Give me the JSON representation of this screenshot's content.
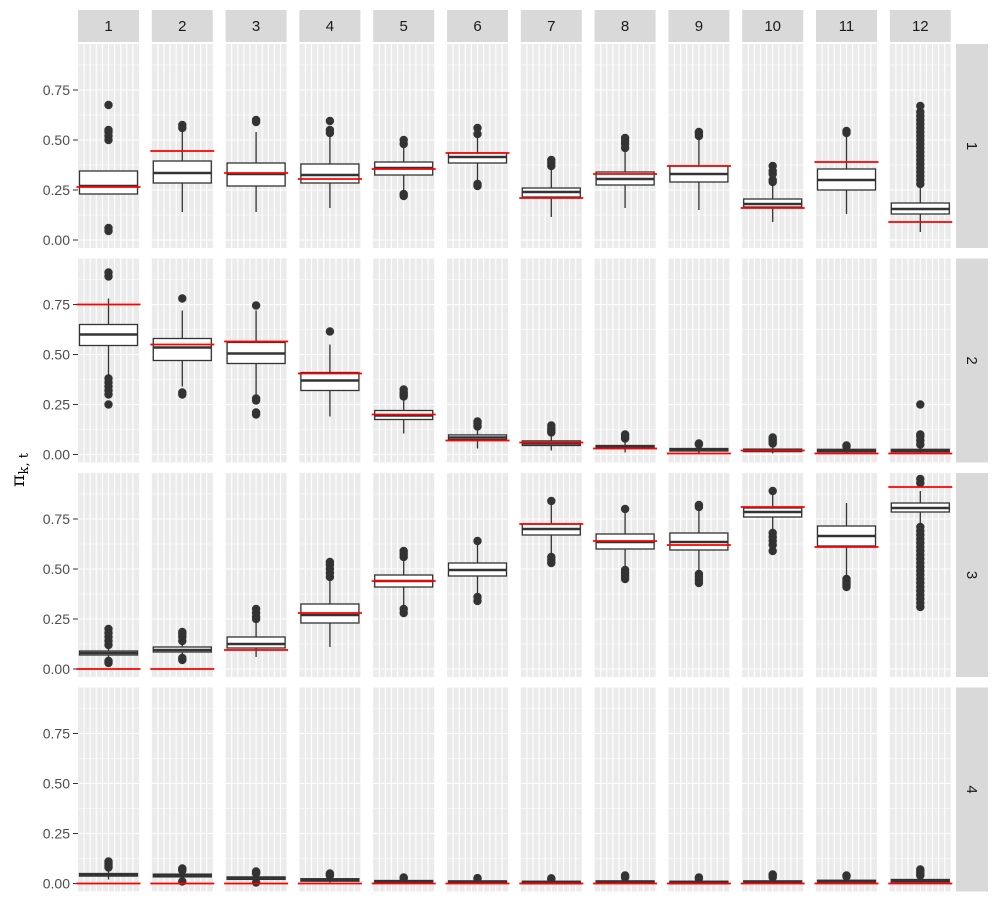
{
  "chart_data": {
    "type": "boxplot",
    "title": "",
    "xlabel": "",
    "ylabel": "π_k, t",
    "ylabel_main": "π",
    "ylabel_sub": "k, t",
    "ylim": [
      -0.04,
      0.98
    ],
    "y_ticks": [
      0,
      0.25,
      0.5,
      0.75
    ],
    "y_tick_labels": [
      "0.00",
      "0.25",
      "0.50",
      "0.75"
    ],
    "grid": true,
    "legend": "none",
    "colors": {
      "panel_bg": "#ebebeb",
      "grid": "#ffffff",
      "strip_bg": "#d9d9d9",
      "box": "#333333",
      "box_fill": "#ffffff",
      "reference_line": "#ff0000"
    },
    "column_facets": [
      "1",
      "2",
      "3",
      "4",
      "5",
      "6",
      "7",
      "8",
      "9",
      "10",
      "11",
      "12"
    ],
    "row_facets": [
      "1",
      "2",
      "3",
      "4"
    ],
    "panels": [
      [
        {
          "q1": 0.23,
          "median": 0.27,
          "q3": 0.345,
          "lo": 0.23,
          "hi": 0.345,
          "ref": 0.265,
          "out": [
            0.045,
            0.06,
            0.5,
            0.52,
            0.54,
            0.55,
            0.675
          ]
        },
        {
          "q1": 0.285,
          "median": 0.335,
          "q3": 0.395,
          "lo": 0.14,
          "hi": 0.55,
          "ref": 0.445,
          "out": [
            0.56,
            0.575
          ]
        },
        {
          "q1": 0.27,
          "median": 0.33,
          "q3": 0.385,
          "lo": 0.14,
          "hi": 0.54,
          "ref": 0.335,
          "out": [
            0.59,
            0.6
          ]
        },
        {
          "q1": 0.285,
          "median": 0.325,
          "q3": 0.38,
          "lo": 0.16,
          "hi": 0.52,
          "ref": 0.305,
          "out": [
            0.535,
            0.55,
            0.595
          ]
        },
        {
          "q1": 0.325,
          "median": 0.36,
          "q3": 0.39,
          "lo": 0.24,
          "hi": 0.47,
          "ref": 0.355,
          "out": [
            0.22,
            0.23,
            0.48,
            0.5
          ]
        },
        {
          "q1": 0.385,
          "median": 0.415,
          "q3": 0.435,
          "lo": 0.29,
          "hi": 0.52,
          "ref": 0.435,
          "out": [
            0.27,
            0.28,
            0.53,
            0.56
          ]
        },
        {
          "q1": 0.215,
          "median": 0.24,
          "q3": 0.26,
          "lo": 0.115,
          "hi": 0.36,
          "ref": 0.21,
          "out": [
            0.37,
            0.385,
            0.4
          ]
        },
        {
          "q1": 0.275,
          "median": 0.305,
          "q3": 0.34,
          "lo": 0.16,
          "hi": 0.45,
          "ref": 0.33,
          "out": [
            0.46,
            0.48,
            0.495,
            0.51
          ]
        },
        {
          "q1": 0.29,
          "median": 0.33,
          "q3": 0.37,
          "lo": 0.15,
          "hi": 0.5,
          "ref": 0.37,
          "out": [
            0.52,
            0.535,
            0.54
          ]
        },
        {
          "q1": 0.165,
          "median": 0.18,
          "q3": 0.205,
          "lo": 0.09,
          "hi": 0.28,
          "ref": 0.16,
          "out": [
            0.29,
            0.3,
            0.33,
            0.345,
            0.37
          ]
        },
        {
          "q1": 0.25,
          "median": 0.3,
          "q3": 0.355,
          "lo": 0.13,
          "hi": 0.52,
          "ref": 0.39,
          "out": [
            0.535,
            0.545
          ]
        },
        {
          "q1": 0.13,
          "median": 0.155,
          "q3": 0.185,
          "lo": 0.04,
          "hi": 0.27,
          "ref": 0.09,
          "out": [
            0.28,
            0.3,
            0.32,
            0.34,
            0.36,
            0.38,
            0.4,
            0.42,
            0.44,
            0.46,
            0.48,
            0.5,
            0.52,
            0.54,
            0.56,
            0.58,
            0.6,
            0.62,
            0.64,
            0.67
          ]
        }
      ],
      [
        {
          "q1": 0.545,
          "median": 0.6,
          "q3": 0.65,
          "lo": 0.4,
          "hi": 0.78,
          "ref": 0.75,
          "out": [
            0.25,
            0.3,
            0.32,
            0.34,
            0.36,
            0.38,
            0.89,
            0.91
          ]
        },
        {
          "q1": 0.47,
          "median": 0.535,
          "q3": 0.58,
          "lo": 0.34,
          "hi": 0.72,
          "ref": 0.55,
          "out": [
            0.3,
            0.31,
            0.78
          ]
        },
        {
          "q1": 0.455,
          "median": 0.505,
          "q3": 0.56,
          "lo": 0.3,
          "hi": 0.72,
          "ref": 0.565,
          "out": [
            0.2,
            0.21,
            0.27,
            0.28,
            0.745
          ]
        },
        {
          "q1": 0.32,
          "median": 0.37,
          "q3": 0.41,
          "lo": 0.19,
          "hi": 0.55,
          "ref": 0.405,
          "out": [
            0.615
          ]
        },
        {
          "q1": 0.175,
          "median": 0.195,
          "q3": 0.22,
          "lo": 0.105,
          "hi": 0.28,
          "ref": 0.2,
          "out": [
            0.29,
            0.3,
            0.31,
            0.325
          ]
        },
        {
          "q1": 0.075,
          "median": 0.085,
          "q3": 0.098,
          "lo": 0.03,
          "hi": 0.13,
          "ref": 0.07,
          "out": [
            0.14,
            0.155,
            0.165
          ]
        },
        {
          "q1": 0.045,
          "median": 0.055,
          "q3": 0.068,
          "lo": 0.02,
          "hi": 0.1,
          "ref": 0.06,
          "out": [
            0.11,
            0.12,
            0.13,
            0.145
          ]
        },
        {
          "q1": 0.03,
          "median": 0.037,
          "q3": 0.045,
          "lo": 0.01,
          "hi": 0.07,
          "ref": 0.03,
          "out": [
            0.08,
            0.09,
            0.1
          ]
        },
        {
          "q1": 0.018,
          "median": 0.024,
          "q3": 0.03,
          "lo": 0.005,
          "hi": 0.045,
          "ref": 0.005,
          "out": [
            0.05,
            0.055
          ]
        },
        {
          "q1": 0.015,
          "median": 0.02,
          "q3": 0.027,
          "lo": 0.005,
          "hi": 0.045,
          "ref": 0.02,
          "out": [
            0.055,
            0.065,
            0.075,
            0.085
          ]
        },
        {
          "q1": 0.015,
          "median": 0.02,
          "q3": 0.026,
          "lo": 0.005,
          "hi": 0.035,
          "ref": 0.005,
          "out": [
            0.04,
            0.045
          ]
        },
        {
          "q1": 0.015,
          "median": 0.02,
          "q3": 0.026,
          "lo": 0.005,
          "hi": 0.04,
          "ref": 0.005,
          "out": [
            0.05,
            0.07,
            0.09,
            0.1,
            0.25
          ]
        }
      ],
      [
        {
          "q1": 0.07,
          "median": 0.08,
          "q3": 0.09,
          "lo": 0.05,
          "hi": 0.11,
          "ref": 0.0,
          "out": [
            0.03,
            0.04,
            0.12,
            0.14,
            0.16,
            0.18,
            0.2
          ]
        },
        {
          "q1": 0.085,
          "median": 0.095,
          "q3": 0.11,
          "lo": 0.06,
          "hi": 0.13,
          "ref": 0.0,
          "out": [
            0.045,
            0.055,
            0.14,
            0.16,
            0.175,
            0.185
          ]
        },
        {
          "q1": 0.105,
          "median": 0.125,
          "q3": 0.16,
          "lo": 0.06,
          "hi": 0.23,
          "ref": 0.095,
          "out": [
            0.25,
            0.26,
            0.28,
            0.3
          ]
        },
        {
          "q1": 0.23,
          "median": 0.27,
          "q3": 0.325,
          "lo": 0.11,
          "hi": 0.45,
          "ref": 0.28,
          "out": [
            0.46,
            0.48,
            0.5,
            0.52,
            0.535
          ]
        },
        {
          "q1": 0.41,
          "median": 0.44,
          "q3": 0.47,
          "lo": 0.32,
          "hi": 0.55,
          "ref": 0.44,
          "out": [
            0.28,
            0.3,
            0.56,
            0.575,
            0.59
          ]
        },
        {
          "q1": 0.465,
          "median": 0.495,
          "q3": 0.53,
          "lo": 0.37,
          "hi": 0.62,
          "ref": 0.0,
          "ref_shown": false,
          "out": [
            0.34,
            0.36,
            0.64
          ]
        },
        {
          "q1": 0.67,
          "median": 0.7,
          "q3": 0.725,
          "lo": 0.57,
          "hi": 0.83,
          "ref": 0.725,
          "out": [
            0.53,
            0.545,
            0.56,
            0.84
          ]
        },
        {
          "q1": 0.6,
          "median": 0.635,
          "q3": 0.675,
          "lo": 0.5,
          "hi": 0.78,
          "ref": 0.64,
          "out": [
            0.45,
            0.465,
            0.48,
            0.495,
            0.8
          ]
        },
        {
          "q1": 0.595,
          "median": 0.635,
          "q3": 0.68,
          "lo": 0.49,
          "hi": 0.8,
          "ref": 0.62,
          "out": [
            0.43,
            0.445,
            0.46,
            0.475,
            0.81,
            0.82
          ]
        },
        {
          "q1": 0.76,
          "median": 0.785,
          "q3": 0.805,
          "lo": 0.69,
          "hi": 0.87,
          "ref": 0.81,
          "out": [
            0.59,
            0.62,
            0.64,
            0.66,
            0.68,
            0.89
          ]
        },
        {
          "q1": 0.615,
          "median": 0.665,
          "q3": 0.715,
          "lo": 0.46,
          "hi": 0.83,
          "ref": 0.61,
          "out": [
            0.41,
            0.42,
            0.43,
            0.44,
            0.45
          ]
        },
        {
          "q1": 0.785,
          "median": 0.805,
          "q3": 0.83,
          "lo": 0.72,
          "hi": 0.89,
          "ref": 0.91,
          "out": [
            0.31,
            0.33,
            0.35,
            0.37,
            0.39,
            0.41,
            0.43,
            0.45,
            0.47,
            0.49,
            0.51,
            0.53,
            0.55,
            0.57,
            0.59,
            0.61,
            0.63,
            0.65,
            0.67,
            0.69,
            0.71,
            0.93,
            0.95
          ]
        }
      ],
      [
        {
          "q1": 0.037,
          "median": 0.043,
          "q3": 0.05,
          "lo": 0.02,
          "hi": 0.07,
          "ref": 0.0,
          "out": [
            0.08,
            0.09,
            0.1,
            0.11
          ]
        },
        {
          "q1": 0.033,
          "median": 0.04,
          "q3": 0.047,
          "lo": 0.02,
          "hi": 0.06,
          "ref": 0.0,
          "out": [
            0.01,
            0.065,
            0.07,
            0.075
          ]
        },
        {
          "q1": 0.022,
          "median": 0.027,
          "q3": 0.033,
          "lo": 0.01,
          "hi": 0.045,
          "ref": 0.0,
          "out": [
            0.005,
            0.05,
            0.055,
            0.06
          ]
        },
        {
          "q1": 0.014,
          "median": 0.018,
          "q3": 0.024,
          "lo": 0.005,
          "hi": 0.035,
          "ref": 0.0,
          "out": [
            0.04,
            0.045,
            0.05
          ]
        },
        {
          "q1": 0.008,
          "median": 0.011,
          "q3": 0.015,
          "lo": 0.002,
          "hi": 0.022,
          "ref": 0.0,
          "out": [
            0.025,
            0.03
          ]
        },
        {
          "q1": 0.006,
          "median": 0.009,
          "q3": 0.013,
          "lo": 0.001,
          "hi": 0.02,
          "ref": 0.0,
          "out": [
            0.023,
            0.027
          ]
        },
        {
          "q1": 0.005,
          "median": 0.008,
          "q3": 0.011,
          "lo": 0.001,
          "hi": 0.018,
          "ref": 0.0,
          "out": [
            0.022,
            0.026
          ]
        },
        {
          "q1": 0.006,
          "median": 0.009,
          "q3": 0.013,
          "lo": 0.001,
          "hi": 0.02,
          "ref": 0.0,
          "out": [
            0.03,
            0.035,
            0.04
          ]
        },
        {
          "q1": 0.005,
          "median": 0.008,
          "q3": 0.011,
          "lo": 0.001,
          "hi": 0.018,
          "ref": 0.0,
          "out": [
            0.025,
            0.03
          ]
        },
        {
          "q1": 0.006,
          "median": 0.009,
          "q3": 0.013,
          "lo": 0.001,
          "hi": 0.02,
          "ref": 0.0,
          "out": [
            0.03,
            0.04,
            0.045
          ]
        },
        {
          "q1": 0.008,
          "median": 0.012,
          "q3": 0.016,
          "lo": 0.002,
          "hi": 0.025,
          "ref": 0.0,
          "out": [
            0.035,
            0.04
          ]
        },
        {
          "q1": 0.01,
          "median": 0.015,
          "q3": 0.02,
          "lo": 0.002,
          "hi": 0.03,
          "ref": 0.0,
          "out": [
            0.04,
            0.05,
            0.06,
            0.07
          ]
        }
      ]
    ]
  }
}
